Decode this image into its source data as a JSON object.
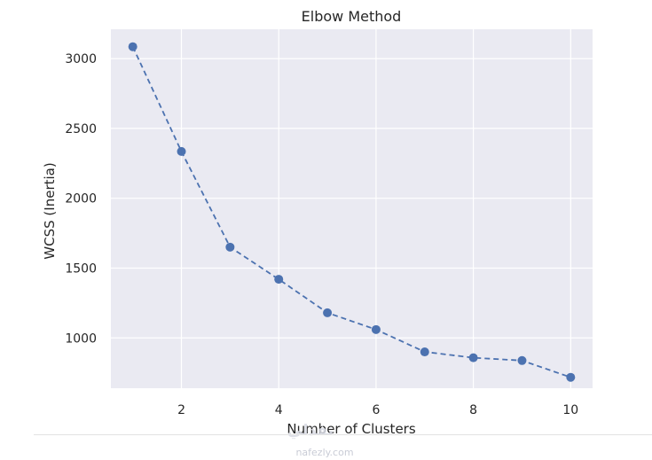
{
  "chart_data": {
    "type": "line",
    "title": "Elbow Method",
    "xlabel": "Number of Clusters",
    "ylabel": "WCSS (Inertia)",
    "x": [
      1,
      2,
      3,
      4,
      5,
      6,
      7,
      8,
      9,
      10
    ],
    "series": [
      {
        "values": [
          3085,
          2335,
          1650,
          1420,
          1180,
          1060,
          900,
          858,
          838,
          718
        ],
        "color": "#4c72b0",
        "line_style": "dashed",
        "marker": "circle"
      }
    ],
    "xticks": [
      2,
      4,
      6,
      8,
      10
    ],
    "yticks": [
      1000,
      1500,
      2000,
      2500,
      3000
    ],
    "xlim": [
      0.55,
      10.45
    ],
    "ylim": [
      640,
      3210
    ],
    "grid": true,
    "style": {
      "plot_background": "#eaeaf2",
      "grid_color": "#ffffff"
    }
  },
  "watermark": {
    "logo_text": "نفذلي",
    "url_text": "nafezly.com"
  }
}
